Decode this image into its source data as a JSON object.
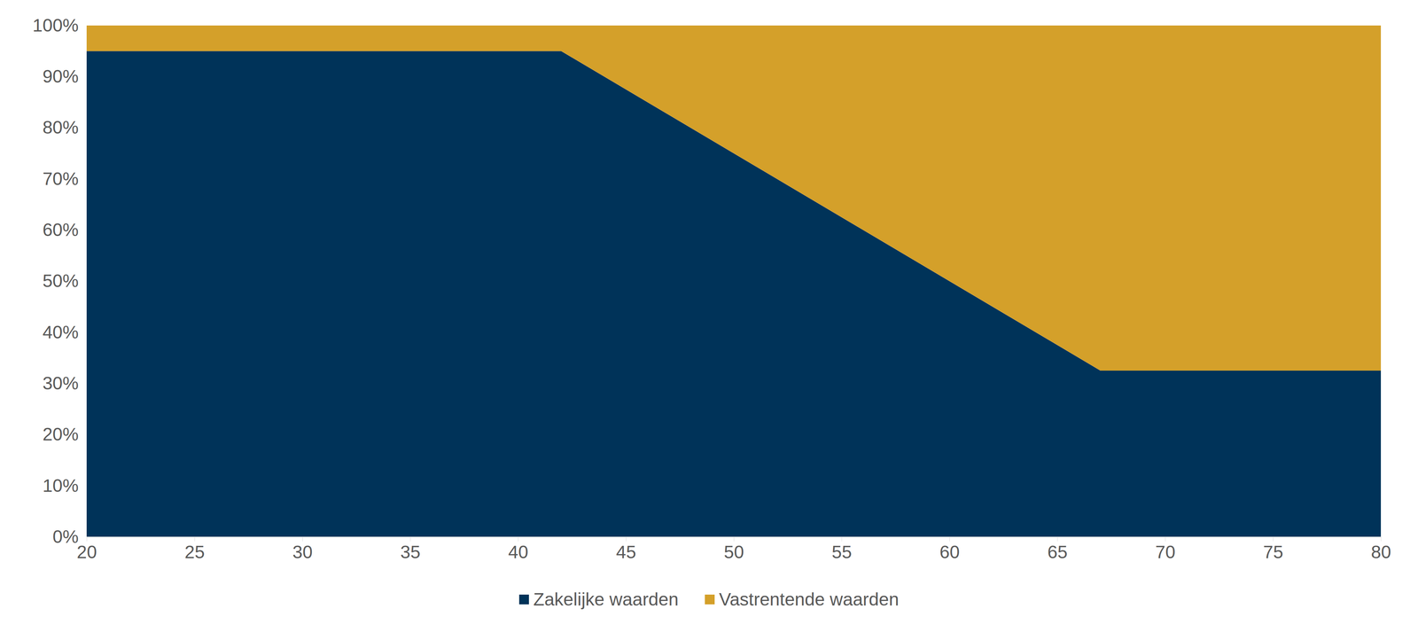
{
  "chart_data": {
    "type": "area",
    "stacked": true,
    "x": [
      20,
      42,
      67,
      80
    ],
    "series": [
      {
        "name": "Zakelijke waarden",
        "color": "#003359",
        "values": [
          95,
          95,
          32.5,
          32.5
        ]
      },
      {
        "name": "Vastrentende waarden",
        "color": "#D4A02A",
        "values": [
          5,
          5,
          67.5,
          67.5
        ]
      }
    ],
    "xlim": [
      20,
      80
    ],
    "xticks": [
      20,
      25,
      30,
      35,
      40,
      45,
      50,
      55,
      60,
      65,
      70,
      75,
      80
    ],
    "ylim": [
      0,
      100
    ],
    "yticks": [
      {
        "value": 0,
        "label": "0%"
      },
      {
        "value": 10,
        "label": "10%"
      },
      {
        "value": 20,
        "label": "20%"
      },
      {
        "value": 30,
        "label": "30%"
      },
      {
        "value": 40,
        "label": "40%"
      },
      {
        "value": 50,
        "label": "50%"
      },
      {
        "value": 60,
        "label": "60%"
      },
      {
        "value": 70,
        "label": "70%"
      },
      {
        "value": 80,
        "label": "80%"
      },
      {
        "value": 90,
        "label": "90%"
      },
      {
        "value": 100,
        "label": "100%"
      }
    ],
    "grid": false,
    "legend": "bottom"
  }
}
